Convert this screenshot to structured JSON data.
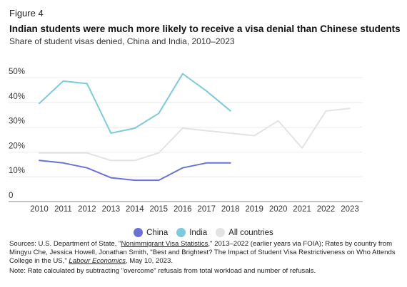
{
  "figure_label": "Figure 4",
  "chart_data": {
    "type": "line",
    "title": "Indian students were much more likely to receive a visa denial than Chinese students",
    "subtitle": "Share of student visas denied, China and India, 2010–2023",
    "x": [
      2010,
      2011,
      2012,
      2013,
      2014,
      2015,
      2016,
      2017,
      2018,
      2019,
      2020,
      2021,
      2022,
      2023
    ],
    "x_tick_labels": [
      "2010",
      "2011",
      "2012",
      "2013",
      "2014",
      "2015",
      "2016",
      "2017",
      "2018",
      "2019",
      "2020",
      "2021",
      "2022",
      "2023"
    ],
    "y_tick_values": [
      0,
      10,
      20,
      30,
      40,
      50
    ],
    "y_tick_labels": [
      "0",
      "10%",
      "20%",
      "30%",
      "40%",
      "50%"
    ],
    "ylim": [
      0,
      50
    ],
    "grid": "horizontal",
    "legend_position": "bottom",
    "series": [
      {
        "name": "China",
        "color": "#6b72d6",
        "values": [
          14,
          13,
          11,
          7,
          6,
          6,
          11,
          13,
          13,
          null,
          null,
          null,
          null,
          null
        ]
      },
      {
        "name": "India",
        "color": "#7ec9dc",
        "values": [
          37,
          46,
          45,
          25,
          27,
          33,
          49,
          42,
          34,
          null,
          null,
          null,
          null,
          null
        ]
      },
      {
        "name": "All countries",
        "color": "#e3e3e3",
        "values": [
          17,
          17,
          17,
          14,
          14,
          17,
          27,
          26,
          25,
          24,
          30,
          19,
          34,
          35
        ]
      }
    ]
  },
  "sources": {
    "prefix": "Sources: U.S. Department of State, \"",
    "link1": "Nonimmigrant Visa Statistics",
    "middle": ",\" 2013–2022 (earlier years via FOIA); Rates by country from Mingyu Che, Jessica Howell, Jonathan Smith, \"Best and Brightest? The Impact of Student Visa Restrictiveness on Who Attends College in the US,\" ",
    "link2": "Labour Economics",
    "suffix": ", May 10, 2023."
  },
  "note": "Note: Rate calculated by subtracting \"overcome\" refusals from total workload and number of refusals."
}
